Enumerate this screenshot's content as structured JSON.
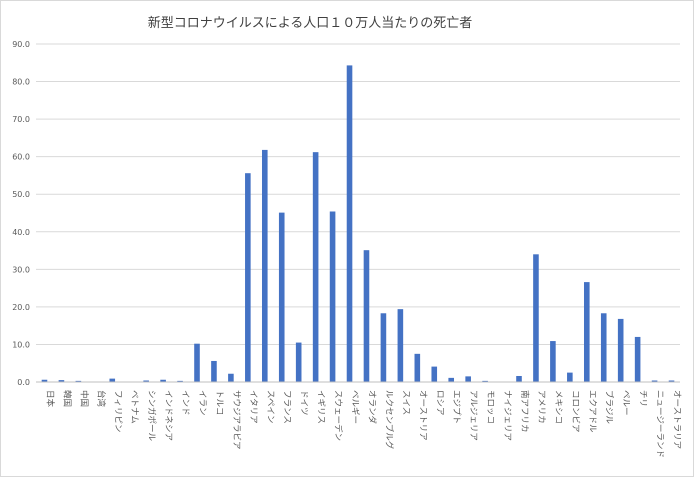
{
  "chart_data": {
    "type": "bar",
    "title": "新型コロナウイルスによる人口１０万人当たりの死亡者",
    "xlabel": "",
    "ylabel": "",
    "ylim": [
      0,
      90
    ],
    "y_ticks": [
      "0.0",
      "10.0",
      "20.0",
      "30.0",
      "40.0",
      "50.0",
      "60.0",
      "70.0",
      "80.0",
      "90.0"
    ],
    "grid": "horizontal",
    "legend": "none",
    "bar_color": "#4472c4",
    "categories": [
      "日本",
      "韓国",
      "中国",
      "台湾",
      "フィリピン",
      "ベトナム",
      "シンガポール",
      "インドネシア",
      "インド",
      "イラン",
      "トルコ",
      "サウジアラビア",
      "イタリア",
      "スペイン",
      "フランス",
      "ドイツ",
      "イギリス",
      "スウェーデン",
      "ベルギー",
      "オランダ",
      "ルクセンブルグ",
      "スイス",
      "オーストリア",
      "ロシア",
      "エジプト",
      "アルジェリア",
      "モロッコ",
      "ナイジェリア",
      "南アフリカ",
      "アメリカ",
      "メキシコ",
      "コロンビア",
      "エクアドル",
      "ブラジル",
      "ペルー",
      "チリ",
      "ニュージーランド",
      "オーストラリア"
    ],
    "values": [
      0.6,
      0.5,
      0.3,
      0.0,
      0.9,
      0.0,
      0.4,
      0.6,
      0.3,
      10.2,
      5.6,
      2.2,
      55.6,
      61.8,
      45.1,
      10.5,
      61.2,
      45.4,
      84.3,
      35.1,
      18.3,
      19.4,
      7.5,
      4.1,
      1.1,
      1.5,
      0.3,
      0.1,
      1.6,
      34.0,
      10.9,
      2.5,
      26.6,
      18.3,
      16.8,
      12.0,
      0.4,
      0.4
    ]
  }
}
